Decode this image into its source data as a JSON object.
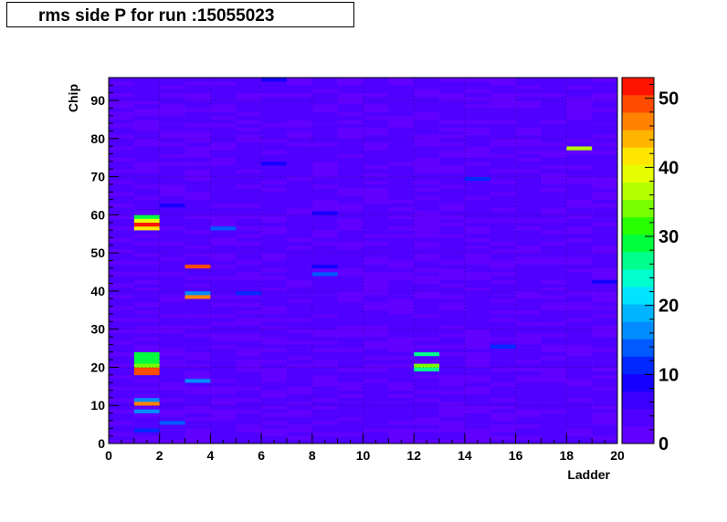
{
  "chart_data": {
    "type": "heatmap",
    "title": "rms side P for run :15055023",
    "xlabel": "Ladder",
    "ylabel": "Chip",
    "xlim": [
      0,
      20
    ],
    "ylim": [
      0,
      96
    ],
    "zlim": [
      0,
      53
    ],
    "x_ticks": [
      0,
      2,
      4,
      6,
      8,
      10,
      12,
      14,
      16,
      18,
      20
    ],
    "y_ticks": [
      0,
      10,
      20,
      30,
      40,
      50,
      60,
      70,
      80,
      90
    ],
    "z_ticks": [
      0,
      10,
      20,
      30,
      40,
      50
    ],
    "grid": true,
    "nx": 20,
    "ny": 96,
    "background_level": 3,
    "hot_cells": [
      {
        "ladder": 1,
        "chip": 3,
        "value": 12
      },
      {
        "ladder": 1,
        "chip": 8,
        "value": 16
      },
      {
        "ladder": 1,
        "chip": 10,
        "value": 47
      },
      {
        "ladder": 1,
        "chip": 11,
        "value": 16
      },
      {
        "ladder": 1,
        "chip": 18,
        "value": 50
      },
      {
        "ladder": 1,
        "chip": 19,
        "value": 48
      },
      {
        "ladder": 1,
        "chip": 20,
        "value": 33
      },
      {
        "ladder": 1,
        "chip": 21,
        "value": 30
      },
      {
        "ladder": 1,
        "chip": 22,
        "value": 28
      },
      {
        "ladder": 1,
        "chip": 23,
        "value": 28
      },
      {
        "ladder": 1,
        "chip": 56,
        "value": 42
      },
      {
        "ladder": 1,
        "chip": 57,
        "value": 51
      },
      {
        "ladder": 1,
        "chip": 58,
        "value": 40
      },
      {
        "ladder": 1,
        "chip": 59,
        "value": 30
      },
      {
        "ladder": 2,
        "chip": 5,
        "value": 15
      },
      {
        "ladder": 2,
        "chip": 62,
        "value": 9
      },
      {
        "ladder": 3,
        "chip": 16,
        "value": 16
      },
      {
        "ladder": 3,
        "chip": 38,
        "value": 47
      },
      {
        "ladder": 3,
        "chip": 39,
        "value": 16
      },
      {
        "ladder": 3,
        "chip": 46,
        "value": 49
      },
      {
        "ladder": 4,
        "chip": 56,
        "value": 15
      },
      {
        "ladder": 5,
        "chip": 39,
        "value": 12
      },
      {
        "ladder": 6,
        "chip": 95,
        "value": 10
      },
      {
        "ladder": 6,
        "chip": 73,
        "value": 9
      },
      {
        "ladder": 8,
        "chip": 44,
        "value": 15
      },
      {
        "ladder": 8,
        "chip": 46,
        "value": 10
      },
      {
        "ladder": 8,
        "chip": 60,
        "value": 10
      },
      {
        "ladder": 12,
        "chip": 19,
        "value": 26
      },
      {
        "ladder": 12,
        "chip": 20,
        "value": 34
      },
      {
        "ladder": 12,
        "chip": 23,
        "value": 27
      },
      {
        "ladder": 14,
        "chip": 69,
        "value": 12
      },
      {
        "ladder": 15,
        "chip": 25,
        "value": 12
      },
      {
        "ladder": 18,
        "chip": 77,
        "value": 36
      },
      {
        "ladder": 19,
        "chip": 42,
        "value": 10
      }
    ]
  }
}
